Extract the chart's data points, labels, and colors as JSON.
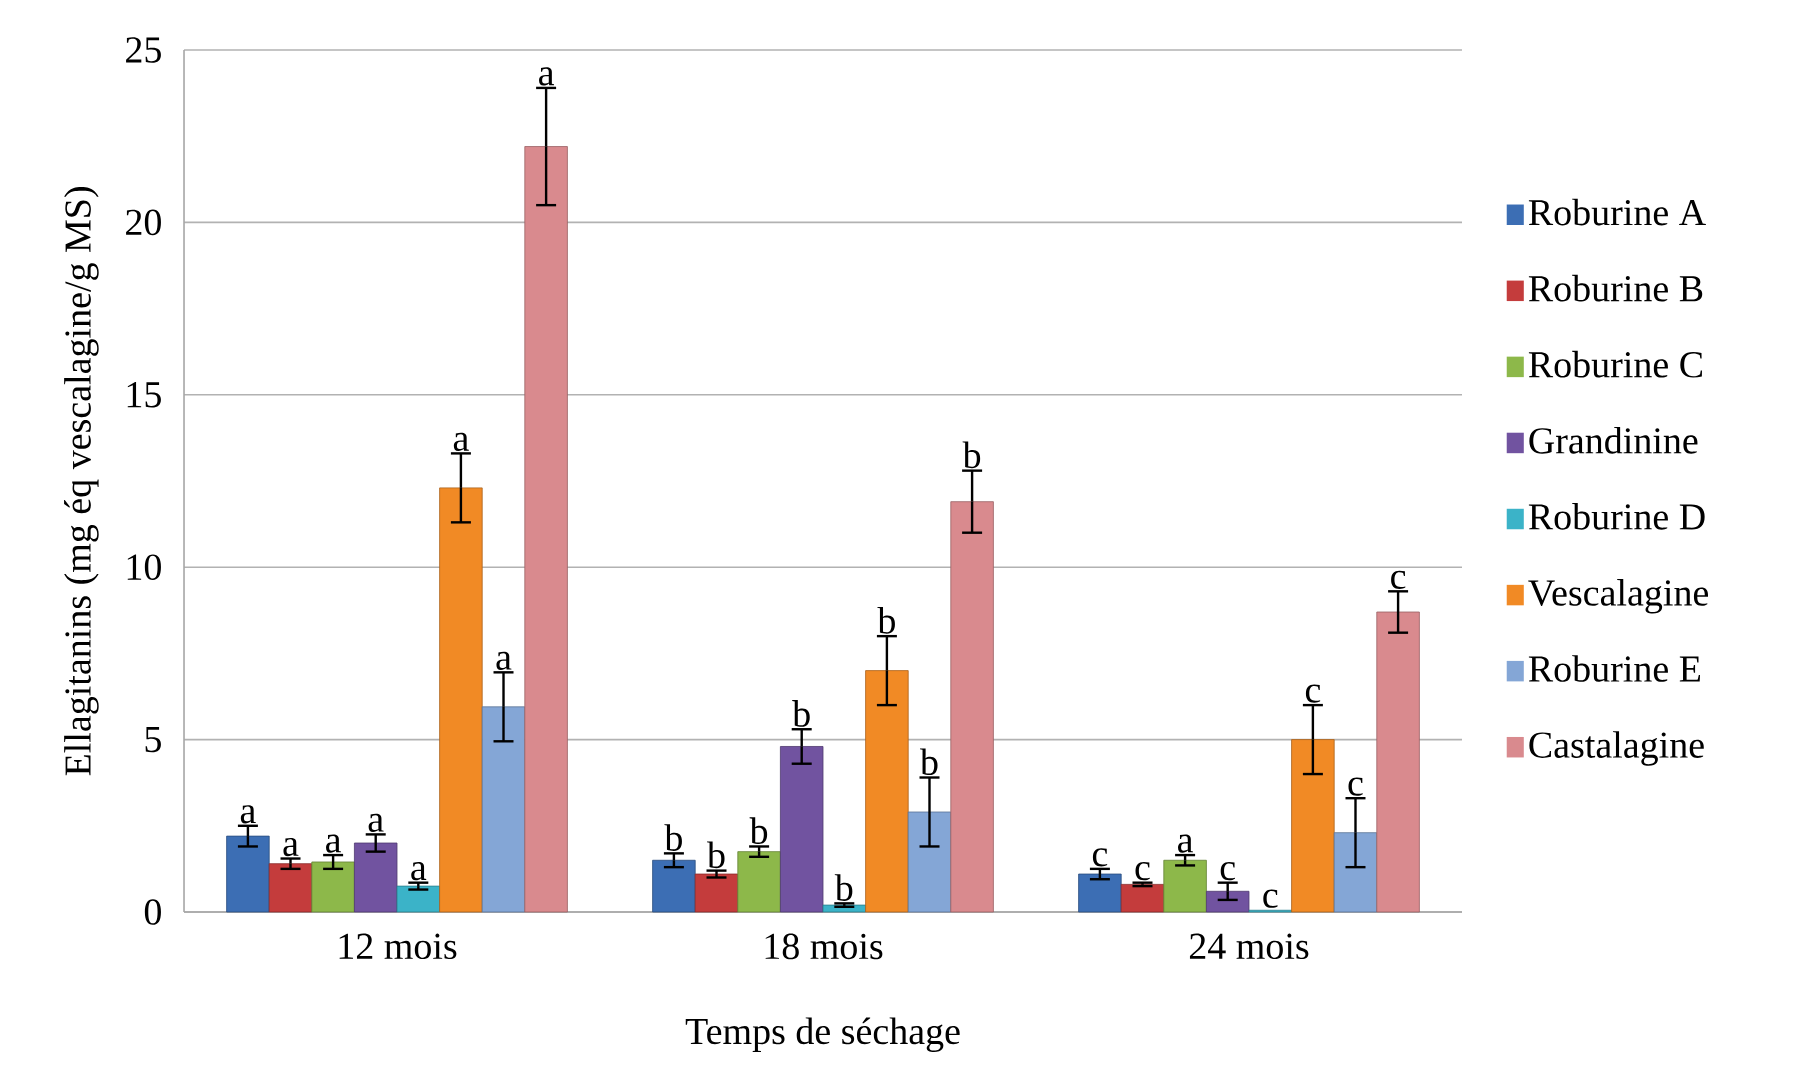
{
  "chart_data": {
    "type": "bar",
    "xlabel": "Temps de séchage",
    "ylabel": "Ellagitanins (mg éq vescalagine/g MS)",
    "categories": [
      "12 mois",
      "18 mois",
      "24 mois"
    ],
    "series": [
      {
        "name": "Roburine A",
        "color": "#3c6eb4",
        "values": [
          2.2,
          1.5,
          1.1
        ],
        "errors": [
          0.3,
          0.2,
          0.15
        ]
      },
      {
        "name": "Roburine B",
        "color": "#c43c3c",
        "values": [
          1.4,
          1.1,
          0.8
        ],
        "errors": [
          0.15,
          0.1,
          0.05
        ]
      },
      {
        "name": "Roburine C",
        "color": "#8db84a",
        "values": [
          1.45,
          1.75,
          1.5
        ],
        "errors": [
          0.2,
          0.15,
          0.15
        ]
      },
      {
        "name": "Grandinine",
        "color": "#7153a0",
        "values": [
          2.0,
          4.8,
          0.6
        ],
        "errors": [
          0.25,
          0.5,
          0.25
        ]
      },
      {
        "name": "Roburine D",
        "color": "#3bb3c8",
        "values": [
          0.75,
          0.2,
          0.05
        ],
        "errors": [
          0.1,
          0.05,
          null
        ]
      },
      {
        "name": "Vescalagine",
        "color": "#f18a25",
        "values": [
          12.3,
          7.0,
          5.0
        ],
        "errors": [
          1.0,
          1.0,
          1.0
        ]
      },
      {
        "name": "Roburine E",
        "color": "#84a6d6",
        "values": [
          5.95,
          2.9,
          2.3
        ],
        "errors": [
          1.0,
          1.0,
          1.0
        ]
      },
      {
        "name": "Castalagine",
        "color": "#d98a8e",
        "values": [
          22.2,
          11.9,
          8.7
        ],
        "errors": [
          1.7,
          0.9,
          0.6
        ]
      }
    ],
    "annotations": [
      "a",
      "a",
      "a",
      "a",
      "a",
      "a",
      "a",
      "a",
      "b",
      "b",
      "b",
      "b",
      "b",
      "b",
      "b",
      "b",
      "c",
      "c",
      "a",
      "c",
      "c",
      "c",
      "c",
      "c"
    ],
    "ylim": [
      0,
      25
    ],
    "yticks": [
      0,
      5,
      10,
      15,
      20,
      25
    ],
    "grid": "y",
    "legend": "right"
  }
}
